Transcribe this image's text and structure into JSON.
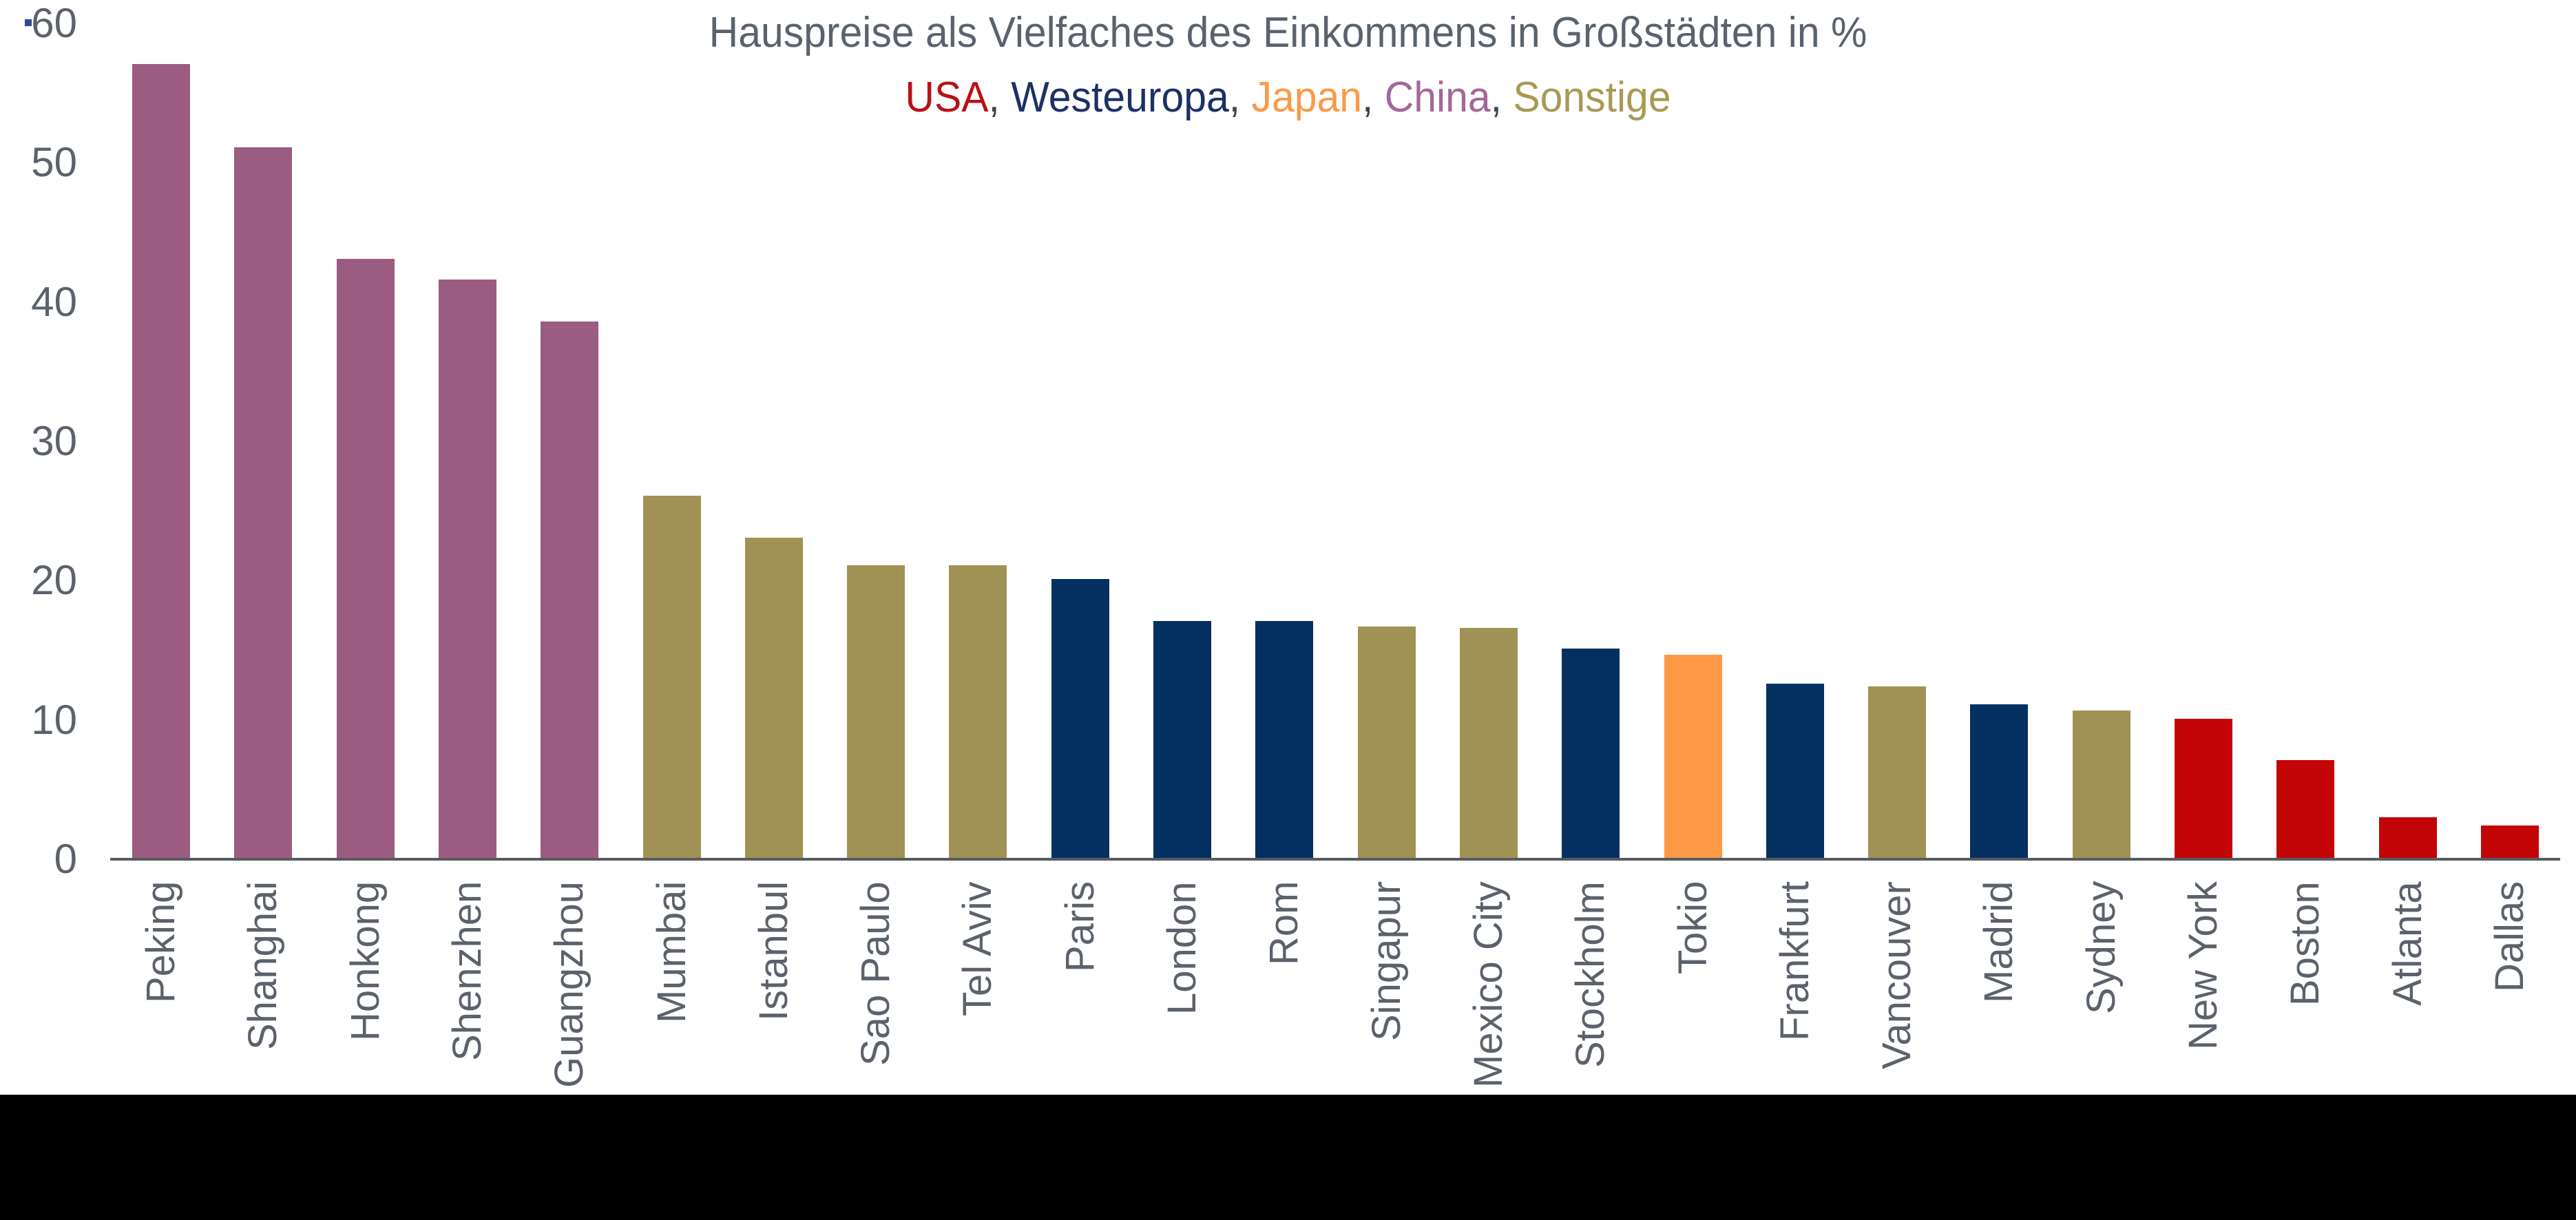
{
  "title": "Hauspreise als Vielfaches des Einkommens in Großstädten in %",
  "legend": {
    "separator": ", ",
    "items": [
      {
        "label": "USA",
        "color": "#b91118"
      },
      {
        "label": "Westeuropa",
        "color": "#1c3064"
      },
      {
        "label": "Japan",
        "color": "#fb9a47"
      },
      {
        "label": "China",
        "color": "#a4679a"
      },
      {
        "label": "Sonstige",
        "color": "#a79a55"
      }
    ]
  },
  "chart_data": {
    "type": "bar",
    "title": "Hauspreise als Vielfaches des Einkommens in Großstädten in %",
    "xlabel": "",
    "ylabel": "",
    "ylim": [
      0,
      60
    ],
    "yticks": [
      "0",
      "10",
      "20",
      "30",
      "40",
      "50",
      "60"
    ],
    "grid": false,
    "legend_position": "top",
    "categories": [
      "Peking",
      "Shanghai",
      "Honkong",
      "Shenzhen",
      "Guangzhou",
      "Mumbai",
      "Istanbul",
      "Sao Paulo",
      "Tel Aviv",
      "Paris",
      "London",
      "Rom",
      "Singapur",
      "Mexico City",
      "Stockholm",
      "Tokio",
      "Frankfurt",
      "Vancouver",
      "Madrid",
      "Sydney",
      "New York",
      "Boston",
      "Atlanta",
      "Dallas"
    ],
    "values": [
      57,
      51,
      43,
      41.5,
      38.5,
      26,
      23,
      21,
      21,
      20,
      17,
      17,
      16.6,
      16.5,
      15,
      14.6,
      12.5,
      12.3,
      11,
      10.6,
      10,
      7,
      2.9,
      2.3
    ],
    "groups": [
      "China",
      "China",
      "China",
      "China",
      "China",
      "Sonstige",
      "Sonstige",
      "Sonstige",
      "Sonstige",
      "Westeuropa",
      "Westeuropa",
      "Westeuropa",
      "Sonstige",
      "Sonstige",
      "Westeuropa",
      "Japan",
      "Westeuropa",
      "Sonstige",
      "Westeuropa",
      "Sonstige",
      "USA",
      "USA",
      "USA",
      "USA"
    ],
    "group_colors": {
      "USA": "#c40508",
      "Westeuropa": "#033060",
      "Japan": "#fd9847",
      "China": "#9b5c81",
      "Sonstige": "#a09254"
    }
  },
  "colors": {
    "title_text": "#59626d",
    "tick_text": "#5b626b",
    "axis_line": "#565b61",
    "footer": "#000000"
  }
}
